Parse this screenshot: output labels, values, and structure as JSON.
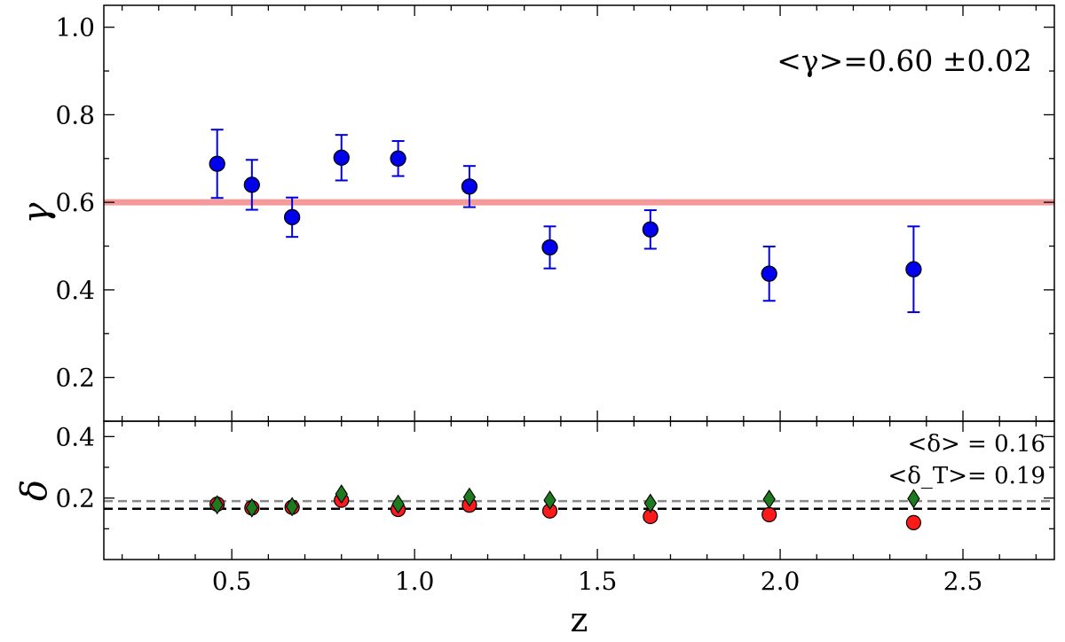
{
  "chart_data": [
    {
      "type": "scatter",
      "panel": "top",
      "xlabel": "",
      "ylabel": "γ",
      "xlim": [
        0.15,
        2.75
      ],
      "ylim": [
        0.1,
        1.05
      ],
      "yticks": [
        0.2,
        0.4,
        0.6,
        0.8,
        1.0
      ],
      "ytick_labels": [
        "0.2",
        "0.4",
        "0.6",
        "0.8",
        "1.0"
      ],
      "annotation": "<γ>=0.60 ±0.02",
      "mean_line": {
        "y": 0.6,
        "color": "#f59a9a"
      },
      "series": [
        {
          "marker": "circle",
          "color": "#0000ee",
          "errorbar_color": "#0000dd",
          "x": [
            0.46,
            0.555,
            0.665,
            0.8,
            0.955,
            1.15,
            1.37,
            1.645,
            1.97,
            2.365
          ],
          "y": [
            0.688,
            0.64,
            0.566,
            0.702,
            0.7,
            0.636,
            0.497,
            0.538,
            0.437,
            0.447
          ],
          "yerr": [
            0.078,
            0.057,
            0.045,
            0.052,
            0.04,
            0.047,
            0.048,
            0.044,
            0.062,
            0.098
          ]
        }
      ]
    },
    {
      "type": "scatter",
      "panel": "bottom",
      "xlabel": "z",
      "ylabel": "δ",
      "xlim": [
        0.15,
        2.75
      ],
      "ylim": [
        0.0,
        0.45
      ],
      "xticks": [
        0.5,
        1.0,
        1.5,
        2.0,
        2.5
      ],
      "xtick_labels": [
        "0.5",
        "1.0",
        "1.5",
        "2.0",
        "2.5"
      ],
      "yticks": [
        0.2,
        0.4
      ],
      "ytick_labels": [
        "0.2",
        "0.4"
      ],
      "annotations": [
        "<δ> = 0.16",
        "<δ_T>= 0.19"
      ],
      "mean_lines": [
        {
          "y": 0.19,
          "color": "#888888",
          "style": "dashed"
        },
        {
          "y": 0.165,
          "color": "#000000",
          "style": "dashed"
        }
      ],
      "series": [
        {
          "marker": "circle",
          "color": "#ff1a1a",
          "x": [
            0.46,
            0.555,
            0.665,
            0.8,
            0.955,
            1.15,
            1.37,
            1.645,
            1.97,
            2.365
          ],
          "y": [
            0.18,
            0.168,
            0.17,
            0.193,
            0.163,
            0.177,
            0.158,
            0.14,
            0.146,
            0.12
          ]
        },
        {
          "marker": "diamond",
          "color": "#1e7a1e",
          "x": [
            0.46,
            0.555,
            0.665,
            0.8,
            0.955,
            1.15,
            1.37,
            1.645,
            1.97,
            2.365
          ],
          "y": [
            0.178,
            0.168,
            0.172,
            0.213,
            0.18,
            0.203,
            0.193,
            0.183,
            0.196,
            0.198
          ]
        }
      ]
    }
  ]
}
